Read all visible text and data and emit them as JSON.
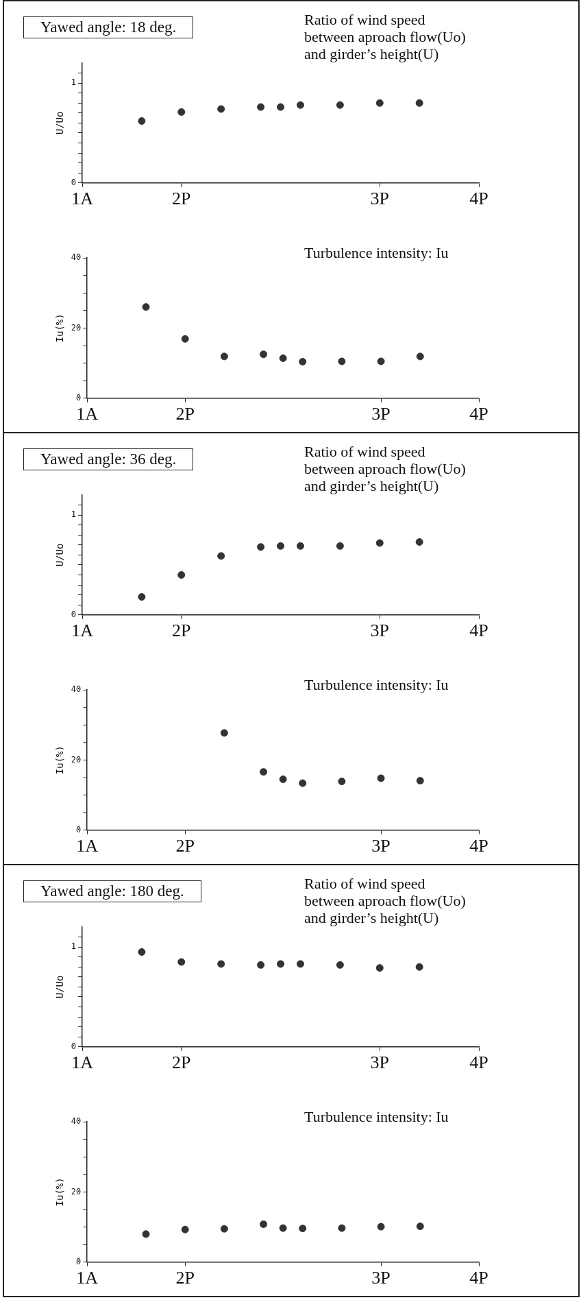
{
  "chart_data": [
    {
      "type": "scatter",
      "title": "Yawed angle: 18 deg.",
      "subtitle": "Ratio of wind speed\nbetween aproach flow(Uo)\nand girder’s height(U)",
      "ylabel": "U/Uo",
      "x": [
        1.8,
        2,
        2.2,
        2.4,
        2.5,
        2.6,
        2.8,
        3,
        3.2
      ],
      "series": [
        {
          "color": "#333333",
          "values": [
            0.62,
            0.71,
            0.74,
            0.76,
            0.76,
            0.78,
            0.78,
            0.8,
            0.8
          ]
        }
      ],
      "xlim": [
        1.5,
        3.5
      ],
      "xticks": [
        {
          "value": 1.5,
          "label": "1A"
        },
        {
          "value": 2,
          "label": "2P"
        },
        {
          "value": 3,
          "label": "3P"
        },
        {
          "value": 3.5,
          "label": "4P"
        }
      ],
      "ylim": [
        0,
        1.2
      ],
      "yticks": [
        0,
        {
          "value": 0.1,
          "label": null
        },
        {
          "value": 0.2,
          "label": null
        },
        {
          "value": 0.3,
          "label": null
        },
        {
          "value": 0.4,
          "label": null
        },
        {
          "value": 0.5,
          "label": null
        },
        {
          "value": 0.6,
          "label": null
        },
        {
          "value": 0.7,
          "label": null
        },
        {
          "value": 0.8,
          "label": null
        },
        {
          "value": 0.9,
          "label": null
        },
        1,
        {
          "value": 1.1,
          "label": null
        }
      ],
      "grid": false,
      "legend": false,
      "marker": "circle"
    },
    {
      "type": "scatter",
      "subtitle": "Turbulence intensity: Iu",
      "ylabel": "Iu(%)",
      "x": [
        1.8,
        2,
        2.2,
        2.4,
        2.5,
        2.6,
        2.8,
        3,
        3.2
      ],
      "series": [
        {
          "color": "#333333",
          "values": [
            26,
            16.9,
            11.9,
            12.5,
            11.4,
            10.4,
            10.5,
            10.5,
            11.9
          ]
        }
      ],
      "xlim": [
        1.5,
        3.5
      ],
      "xticks": [
        {
          "value": 1.5,
          "label": "1A"
        },
        {
          "value": 2,
          "label": "2P"
        },
        {
          "value": 3,
          "label": "3P"
        },
        {
          "value": 3.5,
          "label": "4P"
        }
      ],
      "ylim": [
        0,
        40
      ],
      "yticks": [
        0,
        {
          "value": 5,
          "label": null
        },
        {
          "value": 10,
          "label": null
        },
        {
          "value": 15,
          "label": null
        },
        20,
        {
          "value": 25,
          "label": null
        },
        {
          "value": 30,
          "label": null
        },
        {
          "value": 35,
          "label": null
        },
        40
      ],
      "grid": false,
      "legend": false,
      "marker": "circle"
    },
    {
      "type": "scatter",
      "title": "Yawed angle: 36 deg.",
      "subtitle": "Ratio of wind speed\nbetween aproach flow(Uo)\nand girder’s height(U)",
      "ylabel": "U/Uo",
      "x": [
        1.8,
        2,
        2.2,
        2.4,
        2.5,
        2.6,
        2.8,
        3,
        3.2
      ],
      "series": [
        {
          "color": "#333333",
          "values": [
            0.18,
            0.4,
            0.59,
            0.68,
            0.69,
            0.69,
            0.69,
            0.72,
            0.73
          ]
        }
      ],
      "xlim": [
        1.5,
        3.5
      ],
      "xticks": [
        {
          "value": 1.5,
          "label": "1A"
        },
        {
          "value": 2,
          "label": "2P"
        },
        {
          "value": 3,
          "label": "3P"
        },
        {
          "value": 3.5,
          "label": "4P"
        }
      ],
      "ylim": [
        0,
        1.2
      ],
      "yticks": [
        0,
        {
          "value": 0.1,
          "label": null
        },
        {
          "value": 0.2,
          "label": null
        },
        {
          "value": 0.3,
          "label": null
        },
        {
          "value": 0.4,
          "label": null
        },
        {
          "value": 0.5,
          "label": null
        },
        {
          "value": 0.6,
          "label": null
        },
        {
          "value": 0.7,
          "label": null
        },
        {
          "value": 0.8,
          "label": null
        },
        {
          "value": 0.9,
          "label": null
        },
        1,
        {
          "value": 1.1,
          "label": null
        }
      ],
      "grid": false,
      "legend": false,
      "marker": "circle"
    },
    {
      "type": "scatter",
      "subtitle": "Turbulence intensity: Iu",
      "ylabel": "Iu(%)",
      "series": [
        {
          "color": "#333333",
          "x": [
            2.2,
            2.4,
            2.5,
            2.6,
            2.8,
            3,
            3.2
          ],
          "values": [
            27.7,
            16.6,
            14.5,
            13.4,
            13.9,
            14.8,
            14.1
          ]
        }
      ],
      "xlim": [
        1.5,
        3.5
      ],
      "xticks": [
        {
          "value": 1.5,
          "label": "1A"
        },
        {
          "value": 2,
          "label": "2P"
        },
        {
          "value": 3,
          "label": "3P"
        },
        {
          "value": 3.5,
          "label": "4P"
        }
      ],
      "ylim": [
        0,
        40
      ],
      "yticks": [
        0,
        {
          "value": 5,
          "label": null
        },
        {
          "value": 10,
          "label": null
        },
        {
          "value": 15,
          "label": null
        },
        20,
        {
          "value": 25,
          "label": null
        },
        {
          "value": 30,
          "label": null
        },
        {
          "value": 35,
          "label": null
        },
        40
      ],
      "grid": false,
      "legend": false,
      "marker": "circle"
    },
    {
      "type": "scatter",
      "title": "Yawed angle: 180 deg.",
      "subtitle": "Ratio of wind speed\nbetween aproach flow(Uo)\nand girder’s height(U)",
      "ylabel": "U/Uo",
      "x": [
        1.8,
        2,
        2.2,
        2.4,
        2.5,
        2.6,
        2.8,
        3,
        3.2
      ],
      "series": [
        {
          "color": "#333333",
          "values": [
            0.95,
            0.85,
            0.83,
            0.82,
            0.83,
            0.83,
            0.82,
            0.79,
            0.8
          ]
        }
      ],
      "xlim": [
        1.5,
        3.5
      ],
      "xticks": [
        {
          "value": 1.5,
          "label": "1A"
        },
        {
          "value": 2,
          "label": "2P"
        },
        {
          "value": 3,
          "label": "3P"
        },
        {
          "value": 3.5,
          "label": "4P"
        }
      ],
      "ylim": [
        0,
        1.2
      ],
      "yticks": [
        0,
        {
          "value": 0.1,
          "label": null
        },
        {
          "value": 0.2,
          "label": null
        },
        {
          "value": 0.3,
          "label": null
        },
        {
          "value": 0.4,
          "label": null
        },
        {
          "value": 0.5,
          "label": null
        },
        {
          "value": 0.6,
          "label": null
        },
        {
          "value": 0.7,
          "label": null
        },
        {
          "value": 0.8,
          "label": null
        },
        {
          "value": 0.9,
          "label": null
        },
        1,
        {
          "value": 1.1,
          "label": null
        }
      ],
      "grid": false,
      "legend": false,
      "marker": "circle"
    },
    {
      "type": "scatter",
      "subtitle": "Turbulence intensity: Iu",
      "ylabel": "Iu(%)",
      "x": [
        1.8,
        2,
        2.2,
        2.4,
        2.5,
        2.6,
        2.8,
        3,
        3.2
      ],
      "series": [
        {
          "color": "#333333",
          "values": [
            8,
            9.3,
            9.5,
            10.8,
            9.7,
            9.6,
            9.7,
            10.1,
            10.2
          ]
        }
      ],
      "xlim": [
        1.5,
        3.5
      ],
      "xticks": [
        {
          "value": 1.5,
          "label": "1A"
        },
        {
          "value": 2,
          "label": "2P"
        },
        {
          "value": 3,
          "label": "3P"
        },
        {
          "value": 3.5,
          "label": "4P"
        }
      ],
      "ylim": [
        0,
        40
      ],
      "yticks": [
        0,
        {
          "value": 5,
          "label": null
        },
        {
          "value": 10,
          "label": null
        },
        {
          "value": 15,
          "label": null
        },
        20,
        {
          "value": 25,
          "label": null
        },
        {
          "value": 30,
          "label": null
        },
        {
          "value": 35,
          "label": null
        },
        40
      ],
      "grid": false,
      "legend": false,
      "marker": "circle"
    }
  ]
}
